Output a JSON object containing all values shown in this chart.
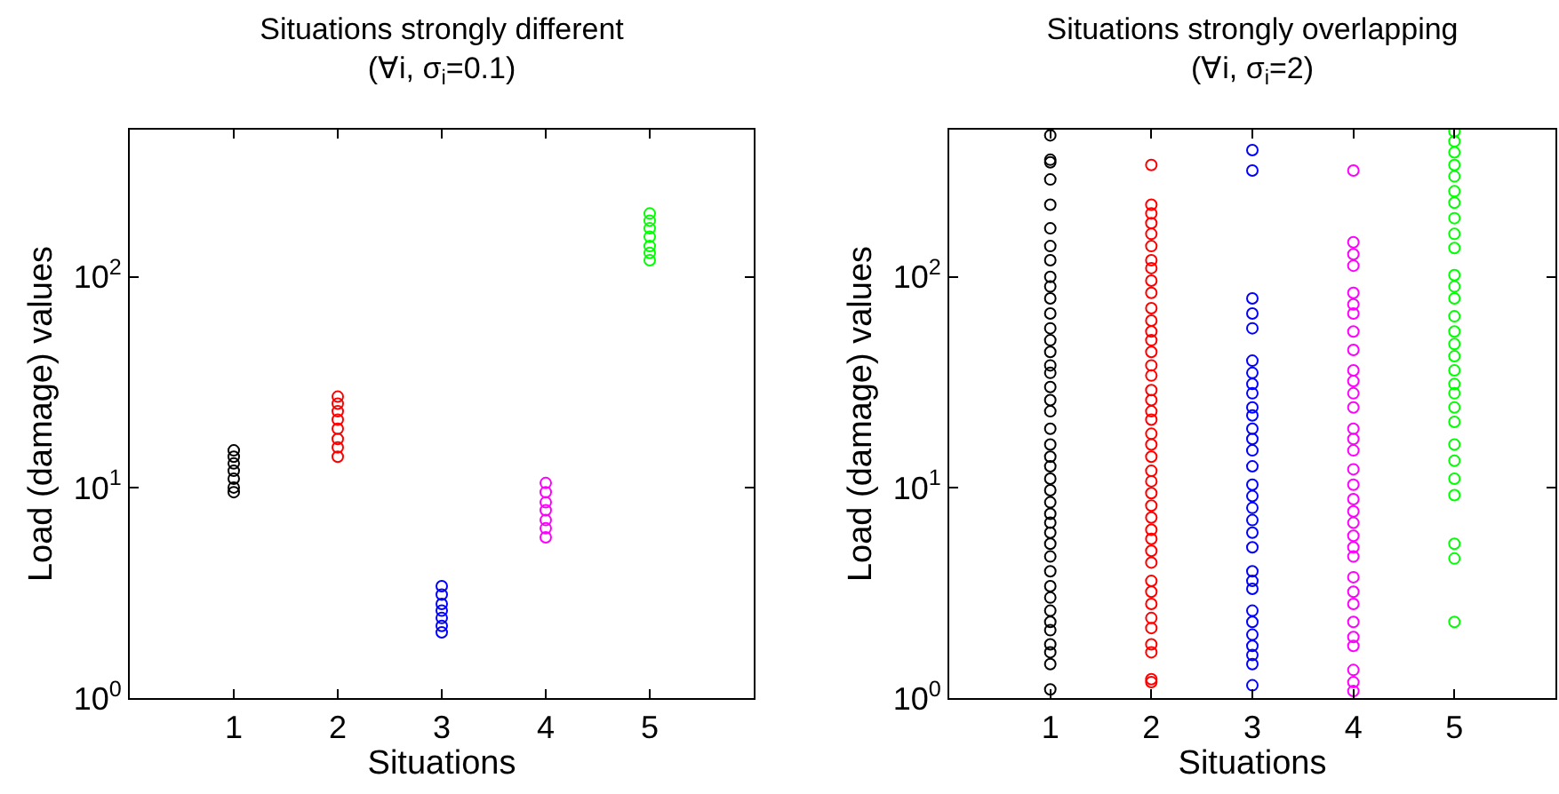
{
  "chart_data": [
    {
      "type": "scatter",
      "title": "Situations strongly different",
      "subtitle": "(∀i, σ$_{i}$=0.1)",
      "xlabel": "Situations",
      "ylabel": "Load (damage) values",
      "log": "y",
      "grid": false,
      "marker": "circle",
      "xlim": [
        0,
        6
      ],
      "xticks": [
        1,
        2,
        3,
        4,
        5
      ],
      "ylim": [
        1,
        500
      ],
      "yticks": [
        {
          "value": 1,
          "label": "10$^{0}$"
        },
        {
          "value": 10,
          "label": "10$^{1}$"
        },
        {
          "value": 100,
          "label": "10$^{2}$"
        }
      ],
      "series": [
        {
          "color": "#000000",
          "x": [
            1,
            1,
            1,
            1,
            1,
            1,
            1
          ],
          "values": [
            15,
            14,
            13,
            12,
            11,
            10,
            9.5
          ]
        },
        {
          "color": "#ff0000",
          "x": [
            2,
            2,
            2,
            2,
            2,
            2,
            2,
            2
          ],
          "values": [
            27,
            25,
            23,
            21,
            19,
            17,
            15.5,
            14
          ]
        },
        {
          "color": "#0000ff",
          "x": [
            3,
            3,
            3,
            3,
            3,
            3,
            3
          ],
          "values": [
            3.4,
            3.1,
            2.8,
            2.6,
            2.4,
            2.2,
            2.05
          ]
        },
        {
          "color": "#ff00ff",
          "x": [
            4,
            4,
            4,
            4,
            4,
            4,
            4
          ],
          "values": [
            10.5,
            9.5,
            8.5,
            7.8,
            7,
            6.4,
            5.8
          ]
        },
        {
          "color": "#00ff00",
          "x": [
            5,
            5,
            5,
            5,
            5,
            5,
            5
          ],
          "values": [
            200,
            185,
            170,
            155,
            140,
            130,
            120
          ]
        }
      ]
    },
    {
      "type": "scatter",
      "title": "Situations strongly overlapping",
      "subtitle": "(∀i, σ$_{i}$=2)",
      "xlabel": "Situations",
      "ylabel": "Load (damage) values",
      "log": "y",
      "grid": false,
      "marker": "circle",
      "xlim": [
        0,
        6
      ],
      "xticks": [
        1,
        2,
        3,
        4,
        5
      ],
      "ylim": [
        1,
        500
      ],
      "yticks": [
        {
          "value": 1,
          "label": "10$^{0}$"
        },
        {
          "value": 10,
          "label": "10$^{1}$"
        },
        {
          "value": 100,
          "label": "10$^{2}$"
        }
      ],
      "series": [
        {
          "color": "#000000",
          "x": [
            1,
            1,
            1,
            1,
            1,
            1,
            1,
            1,
            1,
            1,
            1,
            1,
            1,
            1,
            1,
            1,
            1,
            1,
            1,
            1,
            1,
            1,
            1,
            1,
            1,
            1,
            1,
            1,
            1,
            1,
            1,
            1,
            1,
            1,
            1,
            1,
            1,
            1,
            1,
            1,
            1,
            1
          ],
          "values": [
            470,
            360,
            350,
            290,
            220,
            170,
            140,
            120,
            100,
            90,
            79,
            67,
            57,
            50,
            44,
            38,
            35,
            30,
            26,
            23,
            19,
            16,
            14,
            12.6,
            11,
            9.7,
            8.5,
            7.5,
            6.8,
            6.1,
            5.4,
            4.7,
            4,
            3.4,
            3,
            2.6,
            2.3,
            2.1,
            1.8,
            1.65,
            1.45,
            1.1
          ]
        },
        {
          "color": "#ff0000",
          "x": [
            2,
            2,
            2,
            2,
            2,
            2,
            2,
            2,
            2,
            2,
            2,
            2,
            2,
            2,
            2,
            2,
            2,
            2,
            2,
            2,
            2,
            2,
            2,
            2,
            2,
            2,
            2,
            2,
            2,
            2,
            2,
            2,
            2,
            2,
            2,
            2,
            2,
            2,
            2,
            2,
            2,
            2
          ],
          "values": [
            340,
            220,
            200,
            180,
            160,
            140,
            120,
            110,
            96,
            84,
            71,
            62,
            55,
            50,
            44,
            38,
            34,
            29,
            26,
            23,
            21,
            18,
            16,
            14,
            12,
            10.7,
            9.4,
            8.2,
            7.2,
            6.3,
            5.7,
            5,
            4.4,
            3.6,
            3.2,
            2.8,
            2.4,
            2.15,
            1.8,
            1.65,
            1.23,
            1.19
          ]
        },
        {
          "color": "#0000ff",
          "x": [
            3,
            3,
            3,
            3,
            3,
            3,
            3,
            3,
            3,
            3,
            3,
            3,
            3,
            3,
            3,
            3,
            3,
            3,
            3,
            3,
            3,
            3,
            3,
            3,
            3,
            3,
            3,
            3,
            3,
            3,
            3
          ],
          "values": [
            400,
            320,
            79,
            67,
            57,
            40,
            35,
            31,
            28,
            24,
            22,
            19,
            17,
            15,
            12.6,
            10.3,
            9.1,
            8,
            7,
            6.1,
            5.2,
            4,
            3.6,
            3.3,
            2.6,
            2.3,
            2,
            1.77,
            1.6,
            1.45,
            1.15
          ]
        },
        {
          "color": "#ff00ff",
          "x": [
            4,
            4,
            4,
            4,
            4,
            4,
            4,
            4,
            4,
            4,
            4,
            4,
            4,
            4,
            4,
            4,
            4,
            4,
            4,
            4,
            4,
            4,
            4,
            4,
            4,
            4,
            4,
            4,
            4,
            4,
            4,
            4,
            4
          ],
          "values": [
            320,
            146,
            128,
            113,
            84,
            74,
            67,
            55,
            45,
            36,
            32,
            28,
            24,
            19,
            17,
            15,
            12.2,
            10.3,
            8.8,
            7.7,
            6.8,
            5.9,
            5.2,
            4.7,
            3.75,
            3.2,
            2.8,
            2.3,
            1.95,
            1.77,
            1.36,
            1.19,
            1.08
          ]
        },
        {
          "color": "#00ff00",
          "x": [
            5,
            5,
            5,
            5,
            5,
            5,
            5,
            5,
            5,
            5,
            5,
            5,
            5,
            5,
            5,
            5,
            5,
            5,
            5,
            5,
            5,
            5,
            5,
            5,
            5,
            5,
            5,
            5,
            5
          ],
          "values": [
            490,
            440,
            390,
            340,
            300,
            255,
            225,
            190,
            160,
            137,
            102,
            90,
            79,
            65,
            55,
            48,
            42,
            36,
            31,
            28,
            24,
            20.5,
            16,
            13.4,
            11,
            9.2,
            5.4,
            4.6,
            2.3
          ]
        }
      ]
    }
  ]
}
